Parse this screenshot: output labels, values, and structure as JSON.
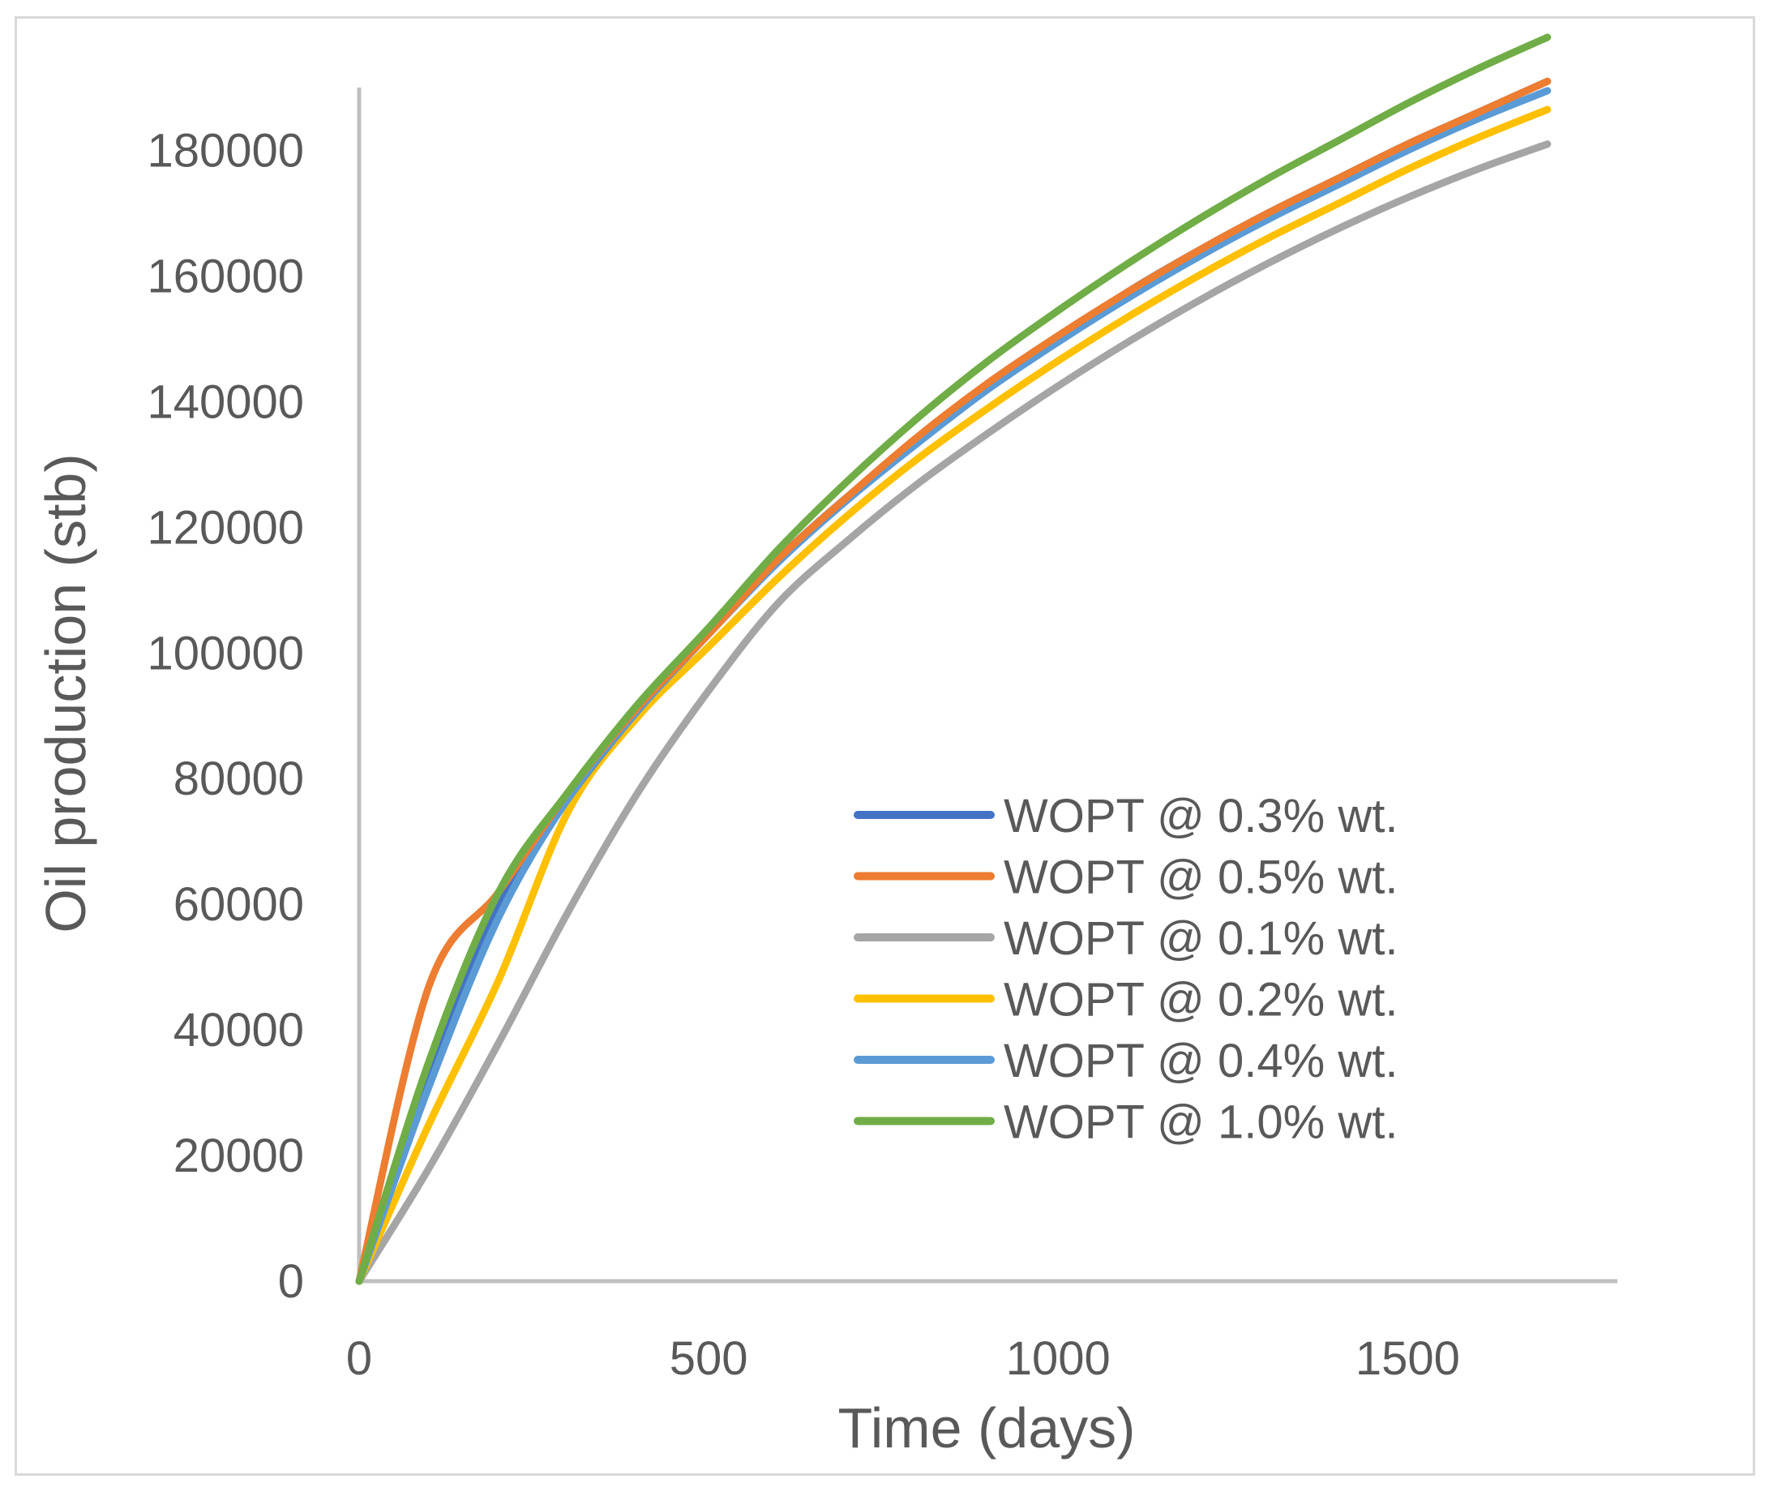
{
  "chart_data": {
    "type": "line",
    "xlabel": "Time (days)",
    "ylabel": "Oil production (stb)",
    "xlim": [
      0,
      1800
    ],
    "ylim": [
      0,
      190000
    ],
    "x_ticks": [
      "0",
      "500",
      "1000",
      "1500"
    ],
    "y_ticks": [
      "0",
      "20000",
      "40000",
      "60000",
      "80000",
      "100000",
      "120000",
      "140000",
      "160000",
      "180000"
    ],
    "grid": false,
    "legend_position": "center-right",
    "series": [
      {
        "name": "WOPT @ 0.3% wt.",
        "color": "#4472c4",
        "x": [
          0,
          100,
          200,
          300,
          400,
          500,
          600,
          700,
          800,
          900,
          1000,
          1100,
          1200,
          1300,
          1400,
          1500,
          1600,
          1700
        ],
        "y": [
          0,
          33000,
          60000,
          77000,
          91000,
          103000,
          115000,
          125000,
          134000,
          142500,
          150000,
          157500,
          164000,
          170000,
          175500,
          181000,
          186000,
          191000
        ]
      },
      {
        "name": "WOPT @ 0.5% wt.",
        "color": "#ed7d31",
        "x": [
          0,
          100,
          200,
          300,
          400,
          500,
          600,
          700,
          800,
          900,
          1000,
          1100,
          1200,
          1300,
          1400,
          1500,
          1600,
          1700
        ],
        "y": [
          0,
          47000,
          62000,
          78000,
          91500,
          103000,
          115000,
          125000,
          134500,
          143000,
          150500,
          157500,
          164000,
          170000,
          175500,
          181000,
          186000,
          191000
        ]
      },
      {
        "name": "WOPT @ 0.1% wt.",
        "color": "#a5a5a5",
        "x": [
          0,
          100,
          200,
          300,
          400,
          500,
          600,
          700,
          800,
          900,
          1000,
          1100,
          1200,
          1300,
          1400,
          1500,
          1600,
          1700
        ],
        "y": [
          0,
          18000,
          38000,
          59000,
          78000,
          94000,
          108000,
          118000,
          127000,
          135000,
          142500,
          149500,
          156000,
          162000,
          167500,
          172500,
          177000,
          181000
        ]
      },
      {
        "name": "WOPT @ 0.2% wt.",
        "color": "#ffc000",
        "x": [
          0,
          100,
          200,
          300,
          400,
          500,
          600,
          700,
          800,
          900,
          1000,
          1100,
          1200,
          1300,
          1400,
          1500,
          1600,
          1700
        ],
        "y": [
          0,
          25000,
          48000,
          75000,
          90000,
          101000,
          112000,
          122000,
          131000,
          139000,
          146500,
          153500,
          160000,
          166000,
          171500,
          177000,
          182000,
          186500
        ]
      },
      {
        "name": "WOPT @ 0.4% wt.",
        "color": "#5b9bd5",
        "x": [
          0,
          100,
          200,
          300,
          400,
          500,
          600,
          700,
          800,
          900,
          1000,
          1100,
          1200,
          1300,
          1400,
          1500,
          1600,
          1700
        ],
        "y": [
          0,
          31000,
          58000,
          77000,
          91000,
          103000,
          114500,
          124500,
          133500,
          142000,
          149500,
          156500,
          163000,
          169000,
          174500,
          180000,
          185000,
          189500
        ]
      },
      {
        "name": "WOPT @ 1.0% wt.",
        "color": "#70ad47",
        "x": [
          0,
          100,
          200,
          300,
          400,
          500,
          600,
          700,
          800,
          900,
          1000,
          1100,
          1200,
          1300,
          1400,
          1500,
          1600,
          1700
        ],
        "y": [
          0,
          35000,
          62000,
          78000,
          92000,
          104000,
          116500,
          127500,
          137500,
          146500,
          154500,
          162000,
          169000,
          175500,
          181500,
          187500,
          193000,
          198000
        ]
      }
    ]
  }
}
